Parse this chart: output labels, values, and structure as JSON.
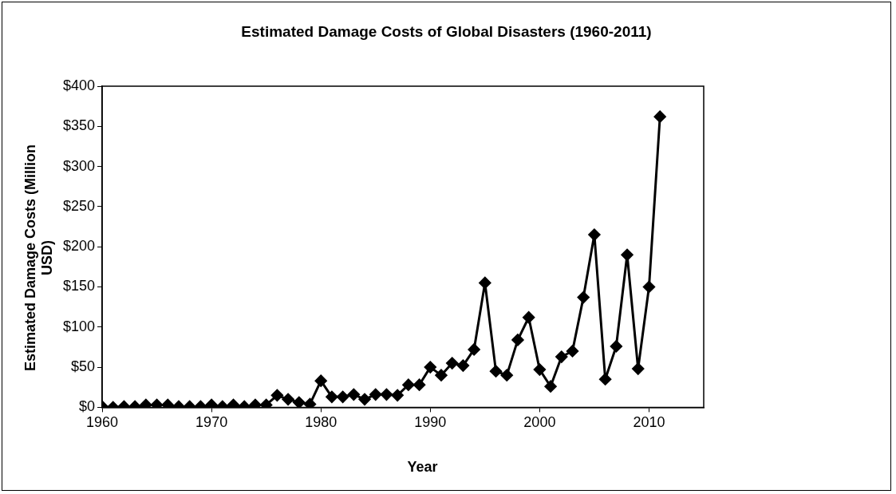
{
  "chart_data": {
    "type": "line",
    "title": "Estimated Damage Costs of Global Disasters (1960-2011)",
    "xlabel": "Year",
    "ylabel": "Estimated Damage Costs (Million USD)",
    "x": [
      1960,
      1961,
      1962,
      1963,
      1964,
      1965,
      1966,
      1967,
      1968,
      1969,
      1970,
      1971,
      1972,
      1973,
      1974,
      1975,
      1976,
      1977,
      1978,
      1979,
      1980,
      1981,
      1982,
      1983,
      1984,
      1985,
      1986,
      1987,
      1988,
      1989,
      1990,
      1991,
      1992,
      1993,
      1994,
      1995,
      1996,
      1997,
      1998,
      1999,
      2000,
      2001,
      2002,
      2003,
      2004,
      2005,
      2006,
      2007,
      2008,
      2009,
      2010,
      2011
    ],
    "series": [
      {
        "color": "#000000",
        "values": [
          1,
          0,
          1,
          1,
          3,
          3,
          3,
          1,
          1,
          1,
          3,
          1,
          3,
          1,
          3,
          3,
          15,
          10,
          6,
          4,
          33,
          13,
          13,
          16,
          10,
          16,
          16,
          15,
          28,
          28,
          50,
          40,
          55,
          52,
          72,
          155,
          45,
          40,
          84,
          112,
          47,
          26,
          63,
          70,
          137,
          215,
          35,
          76,
          190,
          48,
          150,
          362
        ]
      }
    ],
    "xlim": [
      1960,
      2015
    ],
    "xticks": [
      1960,
      1970,
      1980,
      1990,
      2000,
      2010
    ],
    "ylim": [
      0,
      400
    ],
    "yticks": [
      {
        "value": 0,
        "label": "$0"
      },
      {
        "value": 50,
        "label": "$50"
      },
      {
        "value": 100,
        "label": "$100"
      },
      {
        "value": 150,
        "label": "$150"
      },
      {
        "value": 200,
        "label": "$200"
      },
      {
        "value": 250,
        "label": "$250"
      },
      {
        "value": 300,
        "label": "$300"
      },
      {
        "value": 350,
        "label": "$350"
      },
      {
        "value": 400,
        "label": "$400"
      }
    ],
    "grid": false,
    "legend": false,
    "marker": "diamond",
    "line_style": "solid"
  }
}
